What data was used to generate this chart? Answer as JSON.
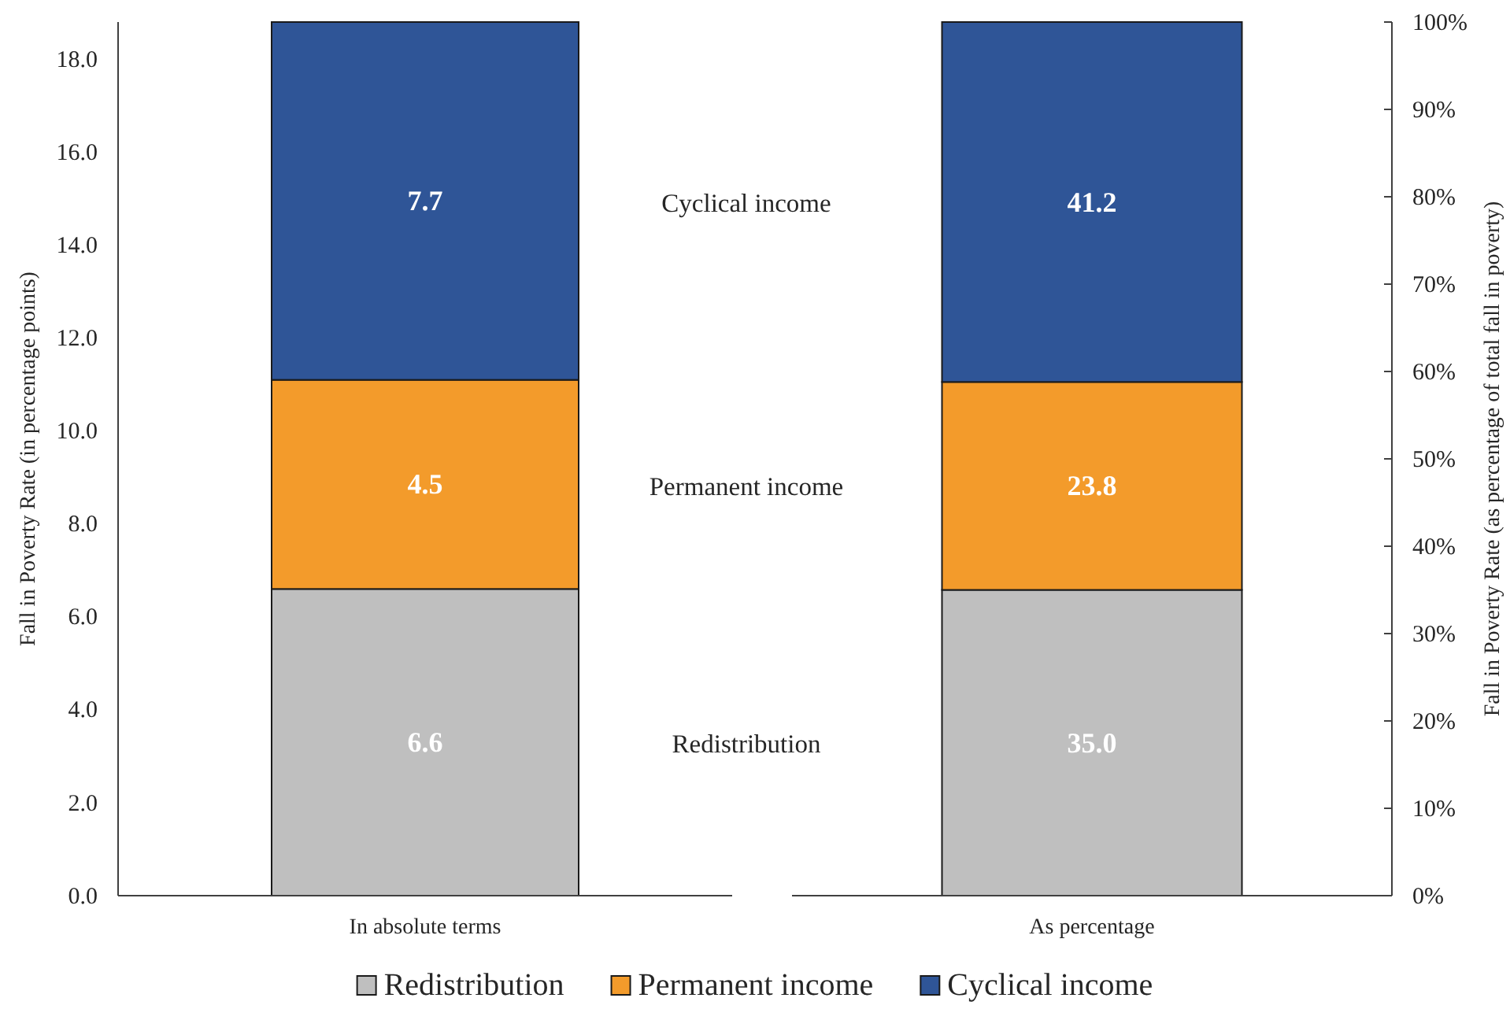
{
  "chart_data": [
    {
      "type": "bar",
      "stacked": true,
      "categories": [
        "In absolute terms"
      ],
      "ylabel": "Fall in Poverty Rate (in percentage points)",
      "ylim": [
        0,
        18.8
      ],
      "yticks": [
        {
          "value": 0,
          "label": "0.0"
        },
        {
          "value": 2,
          "label": "2.0"
        },
        {
          "value": 4,
          "label": "4.0"
        },
        {
          "value": 6,
          "label": "6.0"
        },
        {
          "value": 8,
          "label": "8.0"
        },
        {
          "value": 10,
          "label": "10.0"
        },
        {
          "value": 12,
          "label": "12.0"
        },
        {
          "value": 14,
          "label": "14.0"
        },
        {
          "value": 16,
          "label": "16.0"
        },
        {
          "value": 18,
          "label": "18.0"
        }
      ],
      "legend": "bottom",
      "series": [
        {
          "name": "Redistribution",
          "color": "#bfbfbf",
          "values": [
            6.6
          ],
          "value_labels": [
            "6.6"
          ]
        },
        {
          "name": "Permanent income",
          "color": "#f39b2b",
          "values": [
            4.5
          ],
          "value_labels": [
            "4.5"
          ]
        },
        {
          "name": "Cyclical income",
          "color": "#2f5597",
          "values": [
            7.7
          ],
          "value_labels": [
            "7.7"
          ]
        }
      ]
    },
    {
      "type": "bar",
      "stacked": true,
      "categories": [
        "As percentage"
      ],
      "ylabel": "Fall in Poverty Rate (as percentage of total fall in poverty)",
      "ylim": [
        0,
        100
      ],
      "yticks": [
        {
          "value": 0,
          "label": "0%"
        },
        {
          "value": 10,
          "label": "10%"
        },
        {
          "value": 20,
          "label": "20%"
        },
        {
          "value": 30,
          "label": "30%"
        },
        {
          "value": 40,
          "label": "40%"
        },
        {
          "value": 50,
          "label": "50%"
        },
        {
          "value": 60,
          "label": "60%"
        },
        {
          "value": 70,
          "label": "70%"
        },
        {
          "value": 80,
          "label": "80%"
        },
        {
          "value": 90,
          "label": "90%"
        },
        {
          "value": 100,
          "label": "100%"
        }
      ],
      "series": [
        {
          "color": "#bfbfbf",
          "values": [
            35.0
          ],
          "value_labels": [
            "35.0"
          ]
        },
        {
          "color": "#f39b2b",
          "values": [
            23.8
          ],
          "value_labels": [
            "23.8"
          ]
        },
        {
          "color": "#2f5597",
          "values": [
            41.2
          ],
          "value_labels": [
            "41.2"
          ]
        }
      ],
      "annotations": [
        "Cyclical income",
        "Permanent income",
        "Redistribution"
      ]
    }
  ]
}
